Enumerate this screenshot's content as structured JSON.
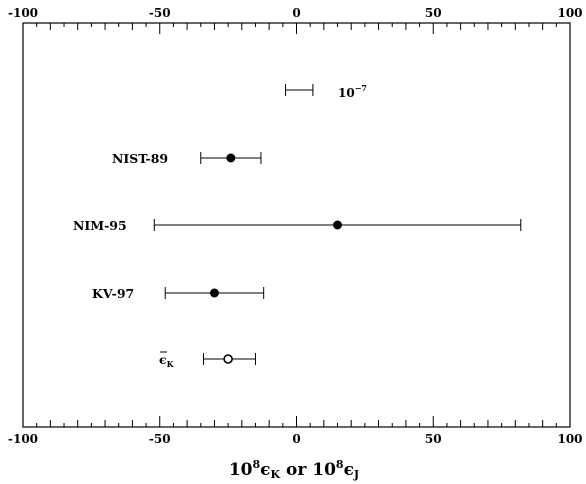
{
  "chart_data": {
    "type": "scatter",
    "xlim": [
      -100,
      100
    ],
    "xticks": [
      -100,
      -50,
      0,
      50,
      100
    ],
    "grid": false,
    "xlabel": "10^8ϵK or 10^8ϵJ",
    "xlabel_parts": {
      "t1": "10",
      "s1": "8",
      "v1": "ϵ",
      "b1": "K",
      "mid": " or ",
      "t2": "10",
      "s2": "8",
      "v2": "ϵ",
      "b2": "J"
    },
    "scale_bar": {
      "label_base": "10",
      "label_exp": "−7",
      "x_start": -4,
      "x_end": 6
    },
    "points": [
      {
        "label": "NIST-89",
        "value": -24,
        "err_low": -35,
        "err_high": -13,
        "marker": "filled"
      },
      {
        "label": "NIM-95",
        "value": 15,
        "err_low": -52,
        "err_high": 82,
        "marker": "filled"
      },
      {
        "label": "KV-97",
        "value": -30,
        "err_low": -48,
        "err_high": -12,
        "marker": "filled"
      },
      {
        "label": "ϵK",
        "value": -25,
        "err_low": -34,
        "err_high": -15,
        "marker": "open"
      }
    ],
    "weighted_mean_label": {
      "base": "ϵ",
      "sub": "K"
    }
  }
}
